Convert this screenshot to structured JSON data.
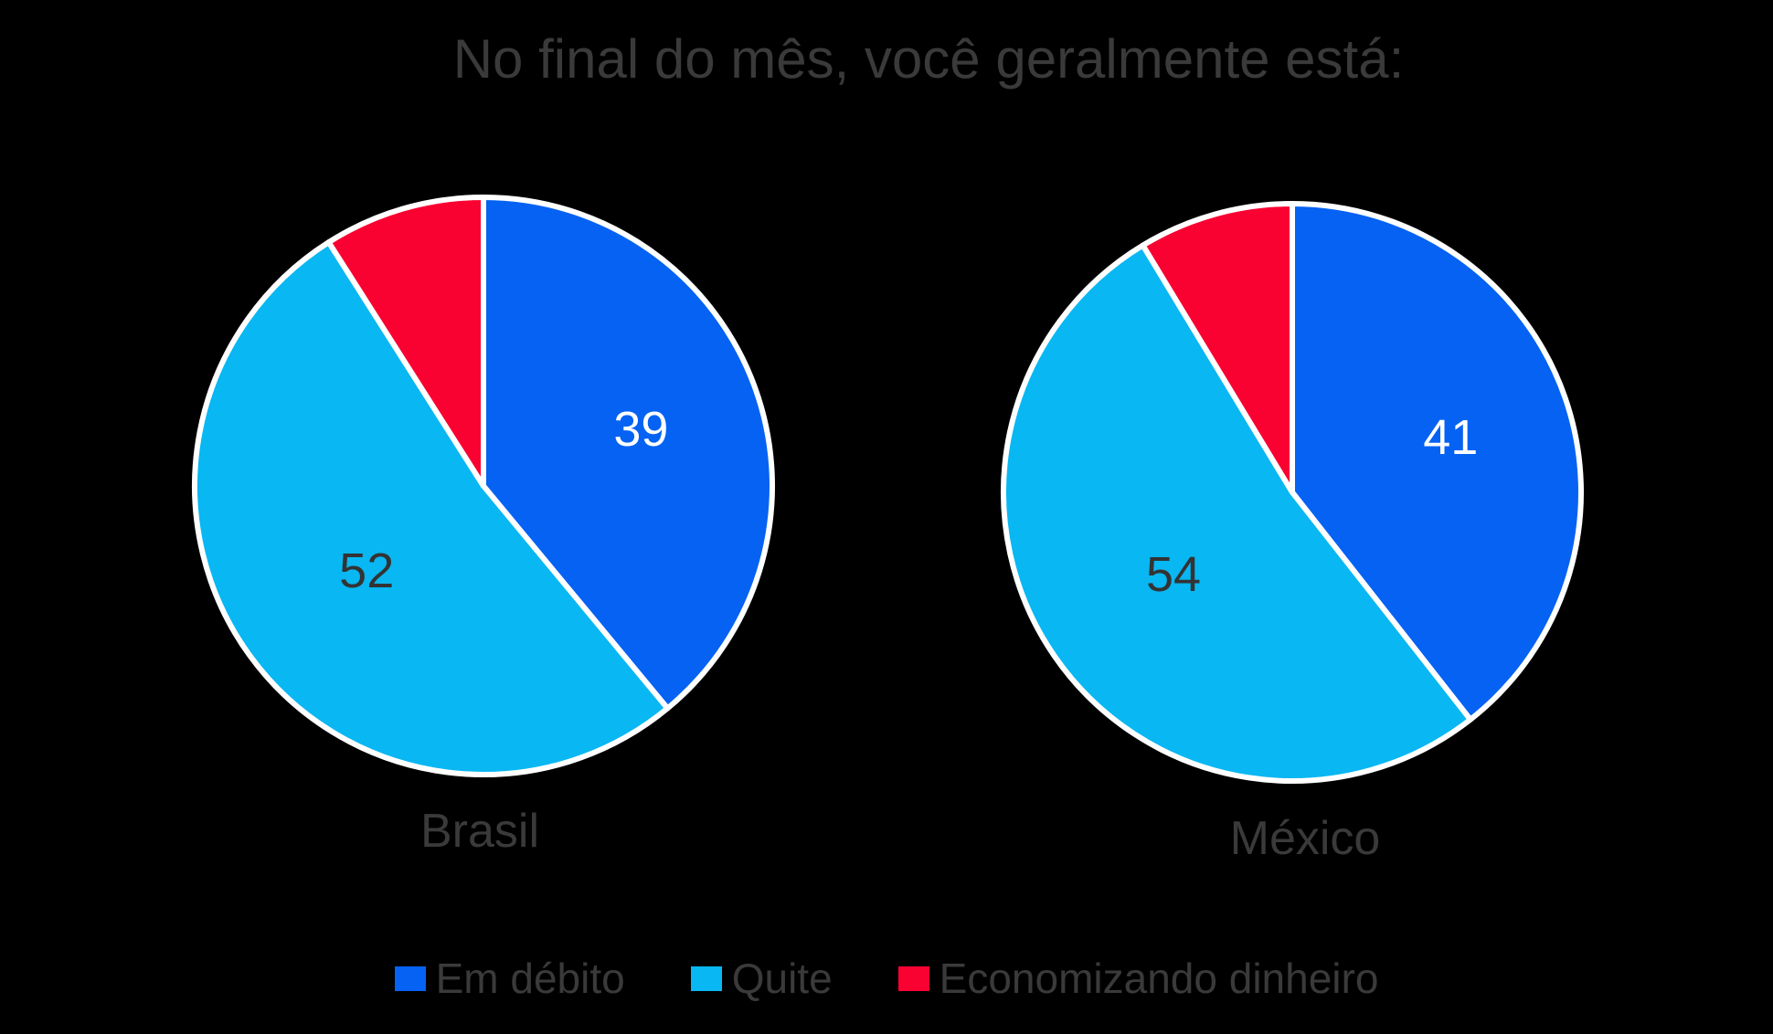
{
  "background": "#000000",
  "title": {
    "text": "No final do mês, você geralmente está:",
    "color": "#3A3A3A"
  },
  "colors": {
    "blue": "#0562F3",
    "cyan": "#09B7F2",
    "red": "#F90232",
    "stroke": "#FFFFFF",
    "title_text": "#3A3A3A",
    "dark_value_text": "#333333",
    "light_value_text": "#FFFFFF"
  },
  "chart_data": [
    {
      "type": "pie",
      "title": "Brasil",
      "start_angle_deg": 0,
      "direction": "clockwise",
      "slices": [
        {
          "name": "Em débito",
          "value": 39,
          "color_key": "blue",
          "value_label": "39",
          "value_label_color": "#FFFFFF"
        },
        {
          "name": "Quite",
          "value": 52,
          "color_key": "cyan",
          "value_label": "52",
          "value_label_color": "#333333"
        },
        {
          "name": "Economizando dinheiro",
          "value": 9,
          "color_key": "red",
          "value_label": null,
          "value_label_color": null
        }
      ]
    },
    {
      "type": "pie",
      "title": "México",
      "start_angle_deg": 0,
      "direction": "clockwise",
      "slices": [
        {
          "name": "Em débito",
          "value": 41,
          "color_key": "blue",
          "value_label": "41",
          "value_label_color": "#FFFFFF"
        },
        {
          "name": "Quite",
          "value": 54,
          "color_key": "cyan",
          "value_label": "54",
          "value_label_color": "#333333"
        },
        {
          "name": "Economizando dinheiro",
          "value": 9,
          "color_key": "red",
          "value_label": null,
          "value_label_color": null
        }
      ]
    }
  ],
  "chart_notes": {
    "red_slice_values_estimated_from_angle": true,
    "slices_normalized_by_sum": true,
    "legend_position": "bottom"
  },
  "legend": {
    "items": [
      {
        "label": "Em débito",
        "color_key": "blue"
      },
      {
        "label": "Quite",
        "color_key": "cyan"
      },
      {
        "label": "Economizando dinheiro",
        "color_key": "red"
      }
    ]
  }
}
